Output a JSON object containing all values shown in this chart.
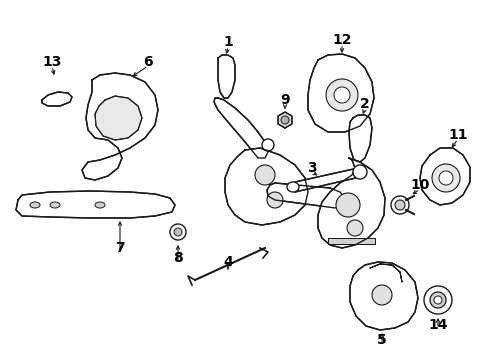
{
  "bg_color": "#ffffff",
  "line_color": "#1a1a1a",
  "label_color": "#000000",
  "figsize": [
    4.9,
    3.6
  ],
  "dpi": 100,
  "label_fontsize": 10,
  "lw": 1.0
}
